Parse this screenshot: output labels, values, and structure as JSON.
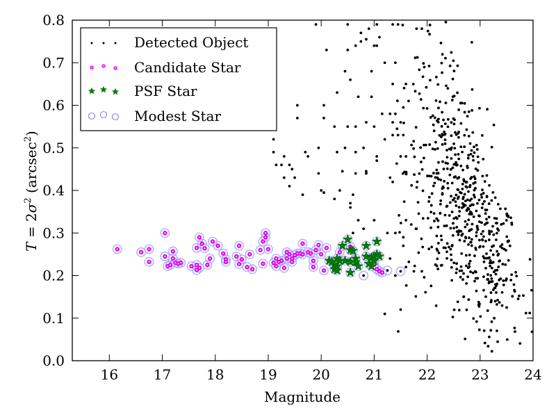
{
  "chart_data": {
    "type": "scatter",
    "title": "",
    "xlabel": "Magnitude",
    "ylabel_parts": {
      "pre": "T",
      "eq": " = 2",
      "sigma": "σ",
      "sup1": "2",
      "unit": " (arcsec",
      "sup2": "2",
      "close": ")"
    },
    "ylabel": "T = 2σ² (arcsec²)",
    "xlim": [
      15.3,
      24
    ],
    "ylim": [
      0.0,
      0.8
    ],
    "xticks": [
      16,
      17,
      18,
      19,
      20,
      21,
      22,
      23,
      24
    ],
    "xtick_labels": [
      "16",
      "17",
      "18",
      "19",
      "20",
      "21",
      "22",
      "23",
      "24"
    ],
    "yticks": [
      0.0,
      0.1,
      0.2,
      0.3,
      0.4,
      0.5,
      0.6,
      0.7,
      0.8
    ],
    "ytick_labels": [
      "0.0",
      "0.1",
      "0.2",
      "0.3",
      "0.4",
      "0.5",
      "0.6",
      "0.7",
      "0.8"
    ],
    "grid": false,
    "legend_position": "top-left",
    "legend": [
      {
        "label": "Detected Object",
        "marker": "dot",
        "color": "#000000"
      },
      {
        "label": "Candidate Star",
        "marker": "circle",
        "color": "#ff00ff"
      },
      {
        "label": "PSF Star",
        "marker": "star",
        "color": "#008000"
      },
      {
        "label": "Modest Star",
        "marker": "open-circle",
        "color": "#8080ff"
      }
    ],
    "series": [
      {
        "name": "Detected Object",
        "points": [
          [
            19.9,
            0.79
          ],
          [
            20.5,
            0.79
          ],
          [
            21.05,
            0.79
          ],
          [
            20.75,
            0.77
          ],
          [
            20.9,
            0.78
          ],
          [
            21.35,
            0.79
          ],
          [
            21.45,
            0.79
          ],
          [
            20.1,
            0.73
          ],
          [
            20.5,
            0.73
          ],
          [
            20.65,
            0.74
          ],
          [
            21.0,
            0.74
          ],
          [
            20.75,
            0.75
          ],
          [
            20.85,
            0.755
          ],
          [
            21.1,
            0.76
          ],
          [
            21.05,
            0.74
          ],
          [
            19.55,
            0.6
          ],
          [
            20.05,
            0.6
          ],
          [
            20.3,
            0.63
          ],
          [
            20.7,
            0.62
          ],
          [
            20.95,
            0.62
          ],
          [
            21.35,
            0.65
          ],
          [
            21.6,
            0.65
          ],
          [
            21.65,
            0.61
          ],
          [
            19.55,
            0.57
          ],
          [
            20.05,
            0.57
          ],
          [
            20.25,
            0.55
          ],
          [
            20.5,
            0.55
          ],
          [
            20.65,
            0.55
          ],
          [
            20.85,
            0.56
          ],
          [
            21.0,
            0.55
          ],
          [
            21.35,
            0.56
          ],
          [
            21.5,
            0.56
          ],
          [
            19.1,
            0.52
          ],
          [
            19.3,
            0.48
          ],
          [
            19.7,
            0.49
          ],
          [
            19.95,
            0.5
          ],
          [
            20.3,
            0.49
          ],
          [
            20.45,
            0.5
          ],
          [
            20.65,
            0.49
          ],
          [
            20.8,
            0.5
          ],
          [
            21.2,
            0.52
          ],
          [
            21.35,
            0.53
          ],
          [
            21.45,
            0.53
          ],
          [
            21.55,
            0.53
          ],
          [
            19.25,
            0.46
          ],
          [
            19.45,
            0.45
          ],
          [
            19.95,
            0.44
          ],
          [
            20.4,
            0.445
          ],
          [
            20.65,
            0.44
          ],
          [
            20.85,
            0.44
          ],
          [
            20.85,
            0.445
          ],
          [
            21.05,
            0.48
          ],
          [
            21.05,
            0.47
          ],
          [
            21.5,
            0.48
          ],
          [
            21.6,
            0.48
          ],
          [
            19.5,
            0.43
          ],
          [
            19.4,
            0.41
          ],
          [
            19.75,
            0.48
          ],
          [
            20.0,
            0.4
          ],
          [
            20.05,
            0.395
          ],
          [
            20.25,
            0.38
          ],
          [
            20.35,
            0.4
          ],
          [
            20.55,
            0.37
          ],
          [
            20.6,
            0.39
          ],
          [
            21.3,
            0.43
          ],
          [
            21.35,
            0.42
          ],
          [
            19.1,
            0.49
          ],
          [
            19.15,
            0.46
          ],
          [
            19.3,
            0.43
          ],
          [
            19.4,
            0.46
          ],
          [
            19.65,
            0.39
          ],
          [
            20.55,
            0.36
          ],
          [
            20.7,
            0.33
          ],
          [
            20.8,
            0.31
          ],
          [
            20.6,
            0.3
          ],
          [
            21.0,
            0.33
          ],
          [
            21.4,
            0.3
          ],
          [
            21.55,
            0.29
          ],
          [
            20.45,
            0.68
          ],
          [
            20.95,
            0.68
          ],
          [
            20.55,
            0.66
          ],
          [
            21.15,
            0.58
          ],
          [
            21.3,
            0.58
          ],
          [
            21.4,
            0.58
          ],
          [
            21.55,
            0.595
          ],
          [
            21.2,
            0.7
          ],
          [
            21.4,
            0.7
          ],
          [
            21.8,
            0.78
          ],
          [
            21.9,
            0.78
          ],
          [
            21.6,
            0.33
          ],
          [
            21.7,
            0.32
          ],
          [
            21.8,
            0.31
          ],
          [
            21.55,
            0.27
          ],
          [
            21.3,
            0.24
          ],
          [
            21.6,
            0.22
          ],
          [
            21.75,
            0.21
          ],
          [
            21.9,
            0.21
          ],
          [
            21.5,
            0.12
          ],
          [
            21.4,
            0.2
          ],
          [
            21.25,
            0.3
          ],
          [
            21.2,
            0.11
          ]
        ],
        "generated_cloud": {
          "description_units": "data units",
          "count": 600,
          "seed": 12345,
          "mag_range": [
            21.3,
            24.0
          ],
          "centroid_mag": 22.7,
          "T_center_by_mag": [
            [
              21.5,
              0.45
            ],
            [
              22.0,
              0.47
            ],
            [
              22.5,
              0.4
            ],
            [
              23.0,
              0.3
            ],
            [
              23.5,
              0.2
            ],
            [
              24.0,
              0.14
            ]
          ],
          "T_spread": 0.15,
          "T_range": [
            0.02,
            0.8
          ]
        }
      },
      {
        "name": "Candidate Star",
        "points": [
          [
            16.15,
            0.262
          ],
          [
            16.6,
            0.255
          ],
          [
            16.75,
            0.262
          ],
          [
            16.75,
            0.232
          ],
          [
            17.05,
            0.3
          ],
          [
            17.05,
            0.245
          ],
          [
            17.1,
            0.222
          ],
          [
            17.15,
            0.225
          ],
          [
            17.2,
            0.257
          ],
          [
            17.2,
            0.24
          ],
          [
            17.25,
            0.23
          ],
          [
            17.3,
            0.228
          ],
          [
            17.35,
            0.23
          ],
          [
            17.55,
            0.222
          ],
          [
            17.65,
            0.225
          ],
          [
            17.65,
            0.213
          ],
          [
            17.7,
            0.218
          ],
          [
            17.7,
            0.29
          ],
          [
            17.75,
            0.275
          ],
          [
            17.65,
            0.265
          ],
          [
            17.8,
            0.264
          ],
          [
            17.85,
            0.225
          ],
          [
            17.9,
            0.24
          ],
          [
            17.95,
            0.28
          ],
          [
            18.05,
            0.27
          ],
          [
            18.15,
            0.252
          ],
          [
            18.2,
            0.238
          ],
          [
            18.2,
            0.232
          ],
          [
            18.45,
            0.27
          ],
          [
            18.4,
            0.245
          ],
          [
            18.5,
            0.238
          ],
          [
            18.45,
            0.227
          ],
          [
            18.6,
            0.22
          ],
          [
            18.65,
            0.25
          ],
          [
            18.7,
            0.215
          ],
          [
            18.85,
            0.26
          ],
          [
            18.9,
            0.28
          ],
          [
            18.95,
            0.3
          ],
          [
            18.95,
            0.29
          ],
          [
            18.9,
            0.228
          ],
          [
            19.0,
            0.262
          ],
          [
            19.1,
            0.23
          ],
          [
            19.15,
            0.222
          ],
          [
            19.15,
            0.24
          ],
          [
            19.2,
            0.232
          ],
          [
            19.25,
            0.235
          ],
          [
            19.3,
            0.218
          ],
          [
            19.35,
            0.255
          ],
          [
            19.35,
            0.24
          ],
          [
            19.4,
            0.25
          ],
          [
            19.45,
            0.24
          ],
          [
            19.45,
            0.232
          ],
          [
            19.5,
            0.248
          ],
          [
            19.55,
            0.252
          ],
          [
            19.6,
            0.252
          ],
          [
            19.65,
            0.275
          ],
          [
            19.65,
            0.25
          ],
          [
            19.75,
            0.255
          ],
          [
            19.8,
            0.252
          ],
          [
            19.85,
            0.235
          ],
          [
            19.85,
            0.22
          ],
          [
            19.9,
            0.26
          ],
          [
            19.95,
            0.272
          ],
          [
            20.0,
            0.25
          ],
          [
            20.05,
            0.212
          ],
          [
            20.1,
            0.265
          ],
          [
            20.35,
            0.255
          ],
          [
            20.55,
            0.268
          ],
          [
            21.0,
            0.226
          ],
          [
            21.05,
            0.215
          ],
          [
            21.1,
            0.21
          ],
          [
            21.15,
            0.207
          ]
        ]
      },
      {
        "name": "PSF Star",
        "points": [
          [
            20.15,
            0.235
          ],
          [
            20.2,
            0.232
          ],
          [
            20.25,
            0.225
          ],
          [
            20.3,
            0.222
          ],
          [
            20.3,
            0.24
          ],
          [
            20.35,
            0.235
          ],
          [
            20.4,
            0.27
          ],
          [
            20.45,
            0.235
          ],
          [
            20.5,
            0.285
          ],
          [
            20.55,
            0.26
          ],
          [
            20.55,
            0.232
          ],
          [
            20.6,
            0.258
          ],
          [
            20.65,
            0.24
          ],
          [
            20.65,
            0.232
          ],
          [
            20.7,
            0.222
          ],
          [
            20.85,
            0.27
          ],
          [
            20.85,
            0.245
          ],
          [
            20.9,
            0.228
          ],
          [
            20.95,
            0.242
          ],
          [
            21.0,
            0.245
          ],
          [
            21.0,
            0.235
          ],
          [
            21.05,
            0.28
          ],
          [
            21.05,
            0.25
          ],
          [
            21.1,
            0.245
          ],
          [
            20.25,
            0.215
          ],
          [
            20.3,
            0.212
          ],
          [
            20.95,
            0.222
          ],
          [
            20.55,
            0.207
          ]
        ]
      },
      {
        "name": "Modest Star",
        "also_circles_all_candidates": true,
        "points": [
          [
            20.8,
            0.2
          ],
          [
            21.25,
            0.212
          ],
          [
            21.5,
            0.21
          ]
        ]
      }
    ]
  }
}
